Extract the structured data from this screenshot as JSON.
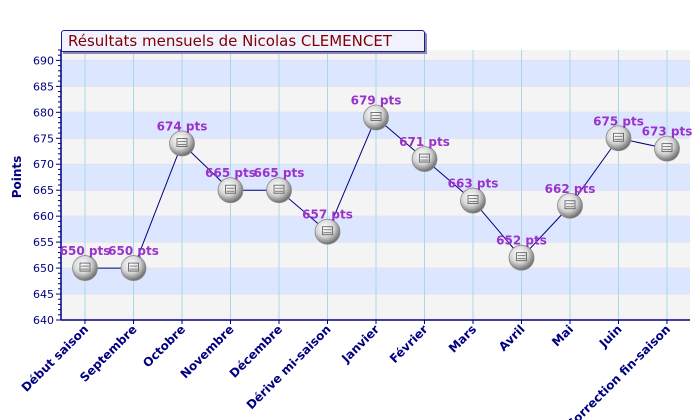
{
  "title": "Résultats mensuels de Nicolas CLEMENCET",
  "chart_data": {
    "type": "line",
    "title": "Résultats mensuels de Nicolas CLEMENCET",
    "xlabel": "",
    "ylabel": "Points",
    "ylim": [
      640,
      692
    ],
    "yticks": [
      640,
      645,
      650,
      655,
      660,
      665,
      670,
      675,
      680,
      685,
      690
    ],
    "categories": [
      "Début saison",
      "Septembre",
      "Octobre",
      "Novembre",
      "Décembre",
      "Dérive mi-saison",
      "Janvier",
      "Février",
      "Mars",
      "Avril",
      "Mai",
      "Juin",
      "Correction fin-saison"
    ],
    "series": [
      {
        "values": [
          650,
          650,
          674,
          665,
          665,
          657,
          679,
          671,
          663,
          652,
          662,
          675,
          673
        ],
        "labels": [
          "650 pts",
          "650 pts",
          "674 pts",
          "665 pts",
          "665 pts",
          "657 pts",
          "679 pts",
          "671 pts",
          "663 pts",
          "652 pts",
          "662 pts",
          "675 pts",
          "673 pts"
        ]
      }
    ],
    "grid": true,
    "legend": "none",
    "colors": {
      "line": "#00007f",
      "band_blue": "#dde6ff",
      "band_light": "#f4f4f4",
      "vgrid": "#a8d8e8",
      "axis": "#000080",
      "tick_text": "#000080",
      "data_label": "#9933cc",
      "title_text": "#800000",
      "title_bg": "#f2f2ff"
    },
    "marker": "ping-pong-ball"
  }
}
